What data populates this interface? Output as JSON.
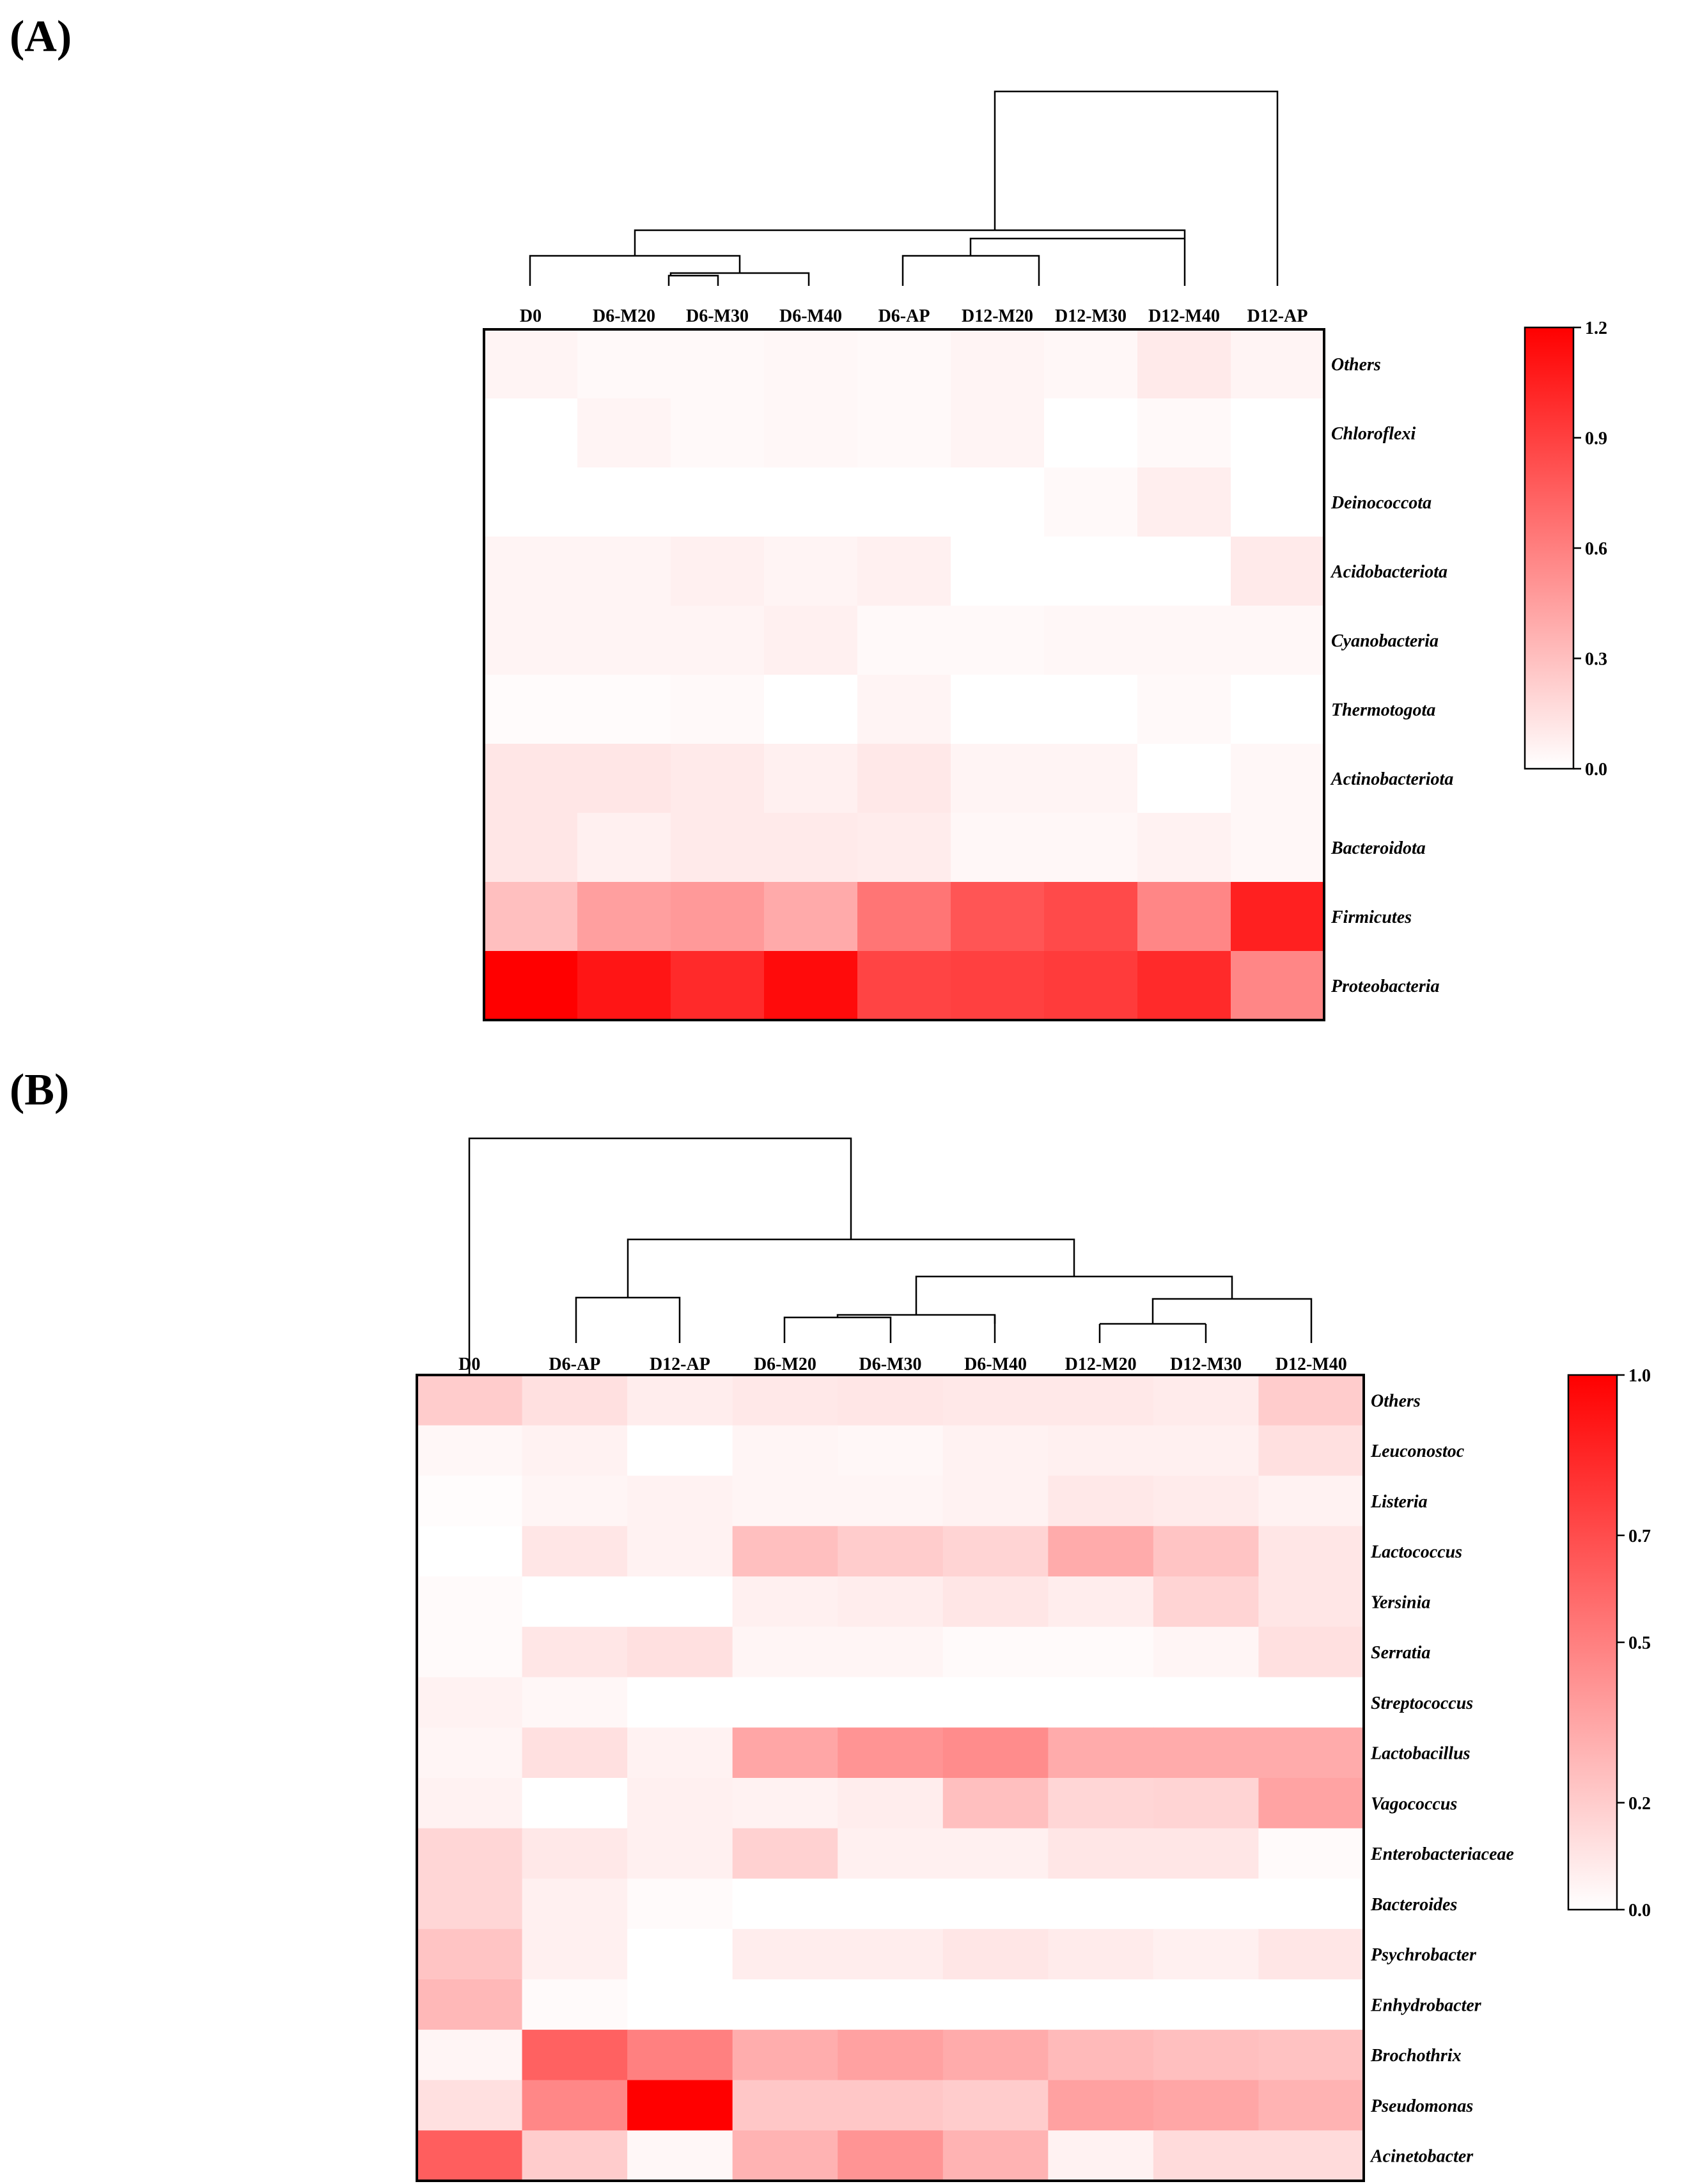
{
  "chart_data": [
    {
      "type": "heatmap",
      "panel_label": "(A)",
      "columns": [
        "D0",
        "D6-M20",
        "D6-M30",
        "D6-M40",
        "D6-AP",
        "D12-M20",
        "D12-M30",
        "D12-M40",
        "D12-AP"
      ],
      "rows": [
        "Others",
        "Chloroflexi",
        "Deinococcota",
        "Acidobacteriota",
        "Cyanobacteria",
        "Thermotogota",
        "Actinobacteriota",
        "Bacteroidota",
        "Firmicutes",
        "Proteobacteria"
      ],
      "values": [
        [
          0.05,
          0.03,
          0.03,
          0.04,
          0.03,
          0.05,
          0.04,
          0.1,
          0.05
        ],
        [
          0.0,
          0.05,
          0.03,
          0.04,
          0.03,
          0.05,
          0.0,
          0.03,
          0.0
        ],
        [
          0.0,
          0.0,
          0.0,
          0.0,
          0.0,
          0.0,
          0.03,
          0.08,
          0.0
        ],
        [
          0.05,
          0.05,
          0.07,
          0.05,
          0.07,
          0.0,
          0.0,
          0.0,
          0.1
        ],
        [
          0.05,
          0.05,
          0.05,
          0.07,
          0.03,
          0.03,
          0.04,
          0.04,
          0.04
        ],
        [
          0.02,
          0.02,
          0.03,
          0.0,
          0.05,
          0.0,
          0.0,
          0.03,
          0.0
        ],
        [
          0.12,
          0.12,
          0.1,
          0.07,
          0.11,
          0.05,
          0.05,
          0.0,
          0.04
        ],
        [
          0.12,
          0.07,
          0.1,
          0.1,
          0.09,
          0.04,
          0.04,
          0.06,
          0.04
        ],
        [
          0.3,
          0.45,
          0.48,
          0.4,
          0.65,
          0.8,
          0.85,
          0.57,
          1.05
        ],
        [
          1.2,
          1.1,
          1.0,
          1.15,
          0.88,
          0.9,
          0.92,
          1.0,
          0.57
        ]
      ],
      "colorbar": {
        "min": 0.0,
        "max": 1.2,
        "ticks": [
          0.0,
          0.3,
          0.6,
          0.9,
          1.2
        ],
        "tick_labels": [
          "0.0",
          "0.3",
          "0.6",
          "0.9",
          "1.2"
        ],
        "low_color": "#ffffff",
        "high_color": "#ff0000"
      }
    },
    {
      "type": "heatmap",
      "panel_label": "(B)",
      "columns": [
        "D0",
        "D6-AP",
        "D12-AP",
        "D6-M20",
        "D6-M30",
        "D6-M40",
        "D12-M20",
        "D12-M30",
        "D12-M40"
      ],
      "rows": [
        "Others",
        "Leuconostoc",
        "Listeria",
        "Lactococcus",
        "Yersinia",
        "Serratia",
        "Streptococcus",
        "Lactobacillus",
        "Vagococcus",
        "Enterobacteriaceae",
        "Bacteroides",
        "Psychrobacter",
        "Enhydrobacter",
        "Brochothrix",
        "Pseudomonas",
        "Acinetobacter"
      ],
      "values": [
        [
          0.2,
          0.12,
          0.07,
          0.09,
          0.1,
          0.09,
          0.09,
          0.08,
          0.2
        ],
        [
          0.03,
          0.05,
          0.0,
          0.04,
          0.03,
          0.05,
          0.06,
          0.06,
          0.12
        ],
        [
          0.01,
          0.04,
          0.05,
          0.04,
          0.04,
          0.05,
          0.09,
          0.08,
          0.05
        ],
        [
          0.0,
          0.1,
          0.05,
          0.25,
          0.2,
          0.17,
          0.33,
          0.23,
          0.1
        ],
        [
          0.02,
          0.0,
          0.0,
          0.06,
          0.07,
          0.1,
          0.07,
          0.17,
          0.1
        ],
        [
          0.02,
          0.1,
          0.12,
          0.04,
          0.04,
          0.02,
          0.02,
          0.04,
          0.12
        ],
        [
          0.05,
          0.03,
          0.0,
          0.0,
          0.0,
          0.0,
          0.0,
          0.0,
          0.0
        ],
        [
          0.04,
          0.12,
          0.05,
          0.35,
          0.42,
          0.45,
          0.33,
          0.33,
          0.33
        ],
        [
          0.05,
          0.0,
          0.06,
          0.05,
          0.07,
          0.25,
          0.16,
          0.17,
          0.36
        ],
        [
          0.16,
          0.09,
          0.06,
          0.18,
          0.06,
          0.06,
          0.1,
          0.1,
          0.02
        ],
        [
          0.16,
          0.06,
          0.02,
          0.0,
          0.0,
          0.0,
          0.0,
          0.0,
          0.0
        ],
        [
          0.23,
          0.06,
          0.0,
          0.07,
          0.07,
          0.1,
          0.08,
          0.06,
          0.1
        ],
        [
          0.28,
          0.02,
          0.0,
          0.0,
          0.0,
          0.0,
          0.0,
          0.0,
          0.0
        ],
        [
          0.04,
          0.62,
          0.5,
          0.32,
          0.37,
          0.33,
          0.27,
          0.25,
          0.24
        ],
        [
          0.12,
          0.47,
          1.0,
          0.22,
          0.22,
          0.2,
          0.37,
          0.35,
          0.3
        ],
        [
          0.63,
          0.2,
          0.03,
          0.3,
          0.42,
          0.3,
          0.05,
          0.14,
          0.14
        ]
      ],
      "colorbar": {
        "min": 0.0,
        "max": 1.0,
        "ticks": [
          0.0,
          0.2,
          0.5,
          0.7,
          1.0
        ],
        "tick_labels": [
          "0.0",
          "0.2",
          "0.5",
          "0.7",
          "1.0"
        ],
        "low_color": "#ffffff",
        "high_color": "#ff0000"
      }
    }
  ]
}
